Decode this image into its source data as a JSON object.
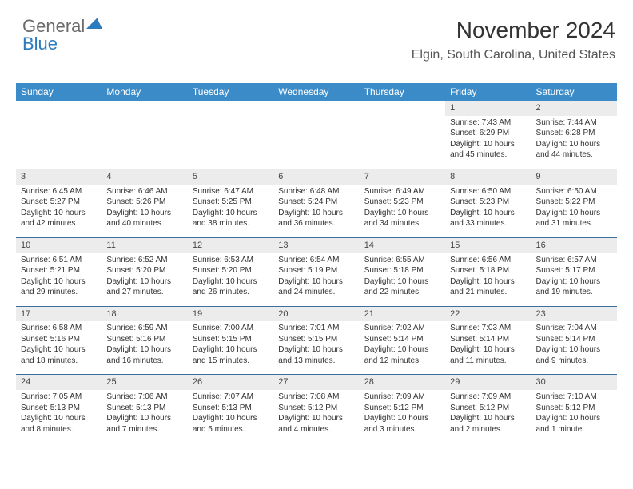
{
  "brand": {
    "part1": "General",
    "part2": "Blue"
  },
  "header": {
    "title": "November 2024",
    "subtitle": "Elgin, South Carolina, United States"
  },
  "colors": {
    "header_bar": "#3b8bc8",
    "week_divider": "#3b6f9e",
    "date_strip": "#ececec",
    "brand_gray": "#6b6b6b",
    "brand_blue": "#2b7bbf"
  },
  "day_names": [
    "Sunday",
    "Monday",
    "Tuesday",
    "Wednesday",
    "Thursday",
    "Friday",
    "Saturday"
  ],
  "weeks": [
    [
      {
        "empty": true
      },
      {
        "empty": true
      },
      {
        "empty": true
      },
      {
        "empty": true
      },
      {
        "empty": true
      },
      {
        "num": "1",
        "sunrise": "Sunrise: 7:43 AM",
        "sunset": "Sunset: 6:29 PM",
        "daylight": "Daylight: 10 hours and 45 minutes."
      },
      {
        "num": "2",
        "sunrise": "Sunrise: 7:44 AM",
        "sunset": "Sunset: 6:28 PM",
        "daylight": "Daylight: 10 hours and 44 minutes."
      }
    ],
    [
      {
        "num": "3",
        "sunrise": "Sunrise: 6:45 AM",
        "sunset": "Sunset: 5:27 PM",
        "daylight": "Daylight: 10 hours and 42 minutes."
      },
      {
        "num": "4",
        "sunrise": "Sunrise: 6:46 AM",
        "sunset": "Sunset: 5:26 PM",
        "daylight": "Daylight: 10 hours and 40 minutes."
      },
      {
        "num": "5",
        "sunrise": "Sunrise: 6:47 AM",
        "sunset": "Sunset: 5:25 PM",
        "daylight": "Daylight: 10 hours and 38 minutes."
      },
      {
        "num": "6",
        "sunrise": "Sunrise: 6:48 AM",
        "sunset": "Sunset: 5:24 PM",
        "daylight": "Daylight: 10 hours and 36 minutes."
      },
      {
        "num": "7",
        "sunrise": "Sunrise: 6:49 AM",
        "sunset": "Sunset: 5:23 PM",
        "daylight": "Daylight: 10 hours and 34 minutes."
      },
      {
        "num": "8",
        "sunrise": "Sunrise: 6:50 AM",
        "sunset": "Sunset: 5:23 PM",
        "daylight": "Daylight: 10 hours and 33 minutes."
      },
      {
        "num": "9",
        "sunrise": "Sunrise: 6:50 AM",
        "sunset": "Sunset: 5:22 PM",
        "daylight": "Daylight: 10 hours and 31 minutes."
      }
    ],
    [
      {
        "num": "10",
        "sunrise": "Sunrise: 6:51 AM",
        "sunset": "Sunset: 5:21 PM",
        "daylight": "Daylight: 10 hours and 29 minutes."
      },
      {
        "num": "11",
        "sunrise": "Sunrise: 6:52 AM",
        "sunset": "Sunset: 5:20 PM",
        "daylight": "Daylight: 10 hours and 27 minutes."
      },
      {
        "num": "12",
        "sunrise": "Sunrise: 6:53 AM",
        "sunset": "Sunset: 5:20 PM",
        "daylight": "Daylight: 10 hours and 26 minutes."
      },
      {
        "num": "13",
        "sunrise": "Sunrise: 6:54 AM",
        "sunset": "Sunset: 5:19 PM",
        "daylight": "Daylight: 10 hours and 24 minutes."
      },
      {
        "num": "14",
        "sunrise": "Sunrise: 6:55 AM",
        "sunset": "Sunset: 5:18 PM",
        "daylight": "Daylight: 10 hours and 22 minutes."
      },
      {
        "num": "15",
        "sunrise": "Sunrise: 6:56 AM",
        "sunset": "Sunset: 5:18 PM",
        "daylight": "Daylight: 10 hours and 21 minutes."
      },
      {
        "num": "16",
        "sunrise": "Sunrise: 6:57 AM",
        "sunset": "Sunset: 5:17 PM",
        "daylight": "Daylight: 10 hours and 19 minutes."
      }
    ],
    [
      {
        "num": "17",
        "sunrise": "Sunrise: 6:58 AM",
        "sunset": "Sunset: 5:16 PM",
        "daylight": "Daylight: 10 hours and 18 minutes."
      },
      {
        "num": "18",
        "sunrise": "Sunrise: 6:59 AM",
        "sunset": "Sunset: 5:16 PM",
        "daylight": "Daylight: 10 hours and 16 minutes."
      },
      {
        "num": "19",
        "sunrise": "Sunrise: 7:00 AM",
        "sunset": "Sunset: 5:15 PM",
        "daylight": "Daylight: 10 hours and 15 minutes."
      },
      {
        "num": "20",
        "sunrise": "Sunrise: 7:01 AM",
        "sunset": "Sunset: 5:15 PM",
        "daylight": "Daylight: 10 hours and 13 minutes."
      },
      {
        "num": "21",
        "sunrise": "Sunrise: 7:02 AM",
        "sunset": "Sunset: 5:14 PM",
        "daylight": "Daylight: 10 hours and 12 minutes."
      },
      {
        "num": "22",
        "sunrise": "Sunrise: 7:03 AM",
        "sunset": "Sunset: 5:14 PM",
        "daylight": "Daylight: 10 hours and 11 minutes."
      },
      {
        "num": "23",
        "sunrise": "Sunrise: 7:04 AM",
        "sunset": "Sunset: 5:14 PM",
        "daylight": "Daylight: 10 hours and 9 minutes."
      }
    ],
    [
      {
        "num": "24",
        "sunrise": "Sunrise: 7:05 AM",
        "sunset": "Sunset: 5:13 PM",
        "daylight": "Daylight: 10 hours and 8 minutes."
      },
      {
        "num": "25",
        "sunrise": "Sunrise: 7:06 AM",
        "sunset": "Sunset: 5:13 PM",
        "daylight": "Daylight: 10 hours and 7 minutes."
      },
      {
        "num": "26",
        "sunrise": "Sunrise: 7:07 AM",
        "sunset": "Sunset: 5:13 PM",
        "daylight": "Daylight: 10 hours and 5 minutes."
      },
      {
        "num": "27",
        "sunrise": "Sunrise: 7:08 AM",
        "sunset": "Sunset: 5:12 PM",
        "daylight": "Daylight: 10 hours and 4 minutes."
      },
      {
        "num": "28",
        "sunrise": "Sunrise: 7:09 AM",
        "sunset": "Sunset: 5:12 PM",
        "daylight": "Daylight: 10 hours and 3 minutes."
      },
      {
        "num": "29",
        "sunrise": "Sunrise: 7:09 AM",
        "sunset": "Sunset: 5:12 PM",
        "daylight": "Daylight: 10 hours and 2 minutes."
      },
      {
        "num": "30",
        "sunrise": "Sunrise: 7:10 AM",
        "sunset": "Sunset: 5:12 PM",
        "daylight": "Daylight: 10 hours and 1 minute."
      }
    ]
  ]
}
